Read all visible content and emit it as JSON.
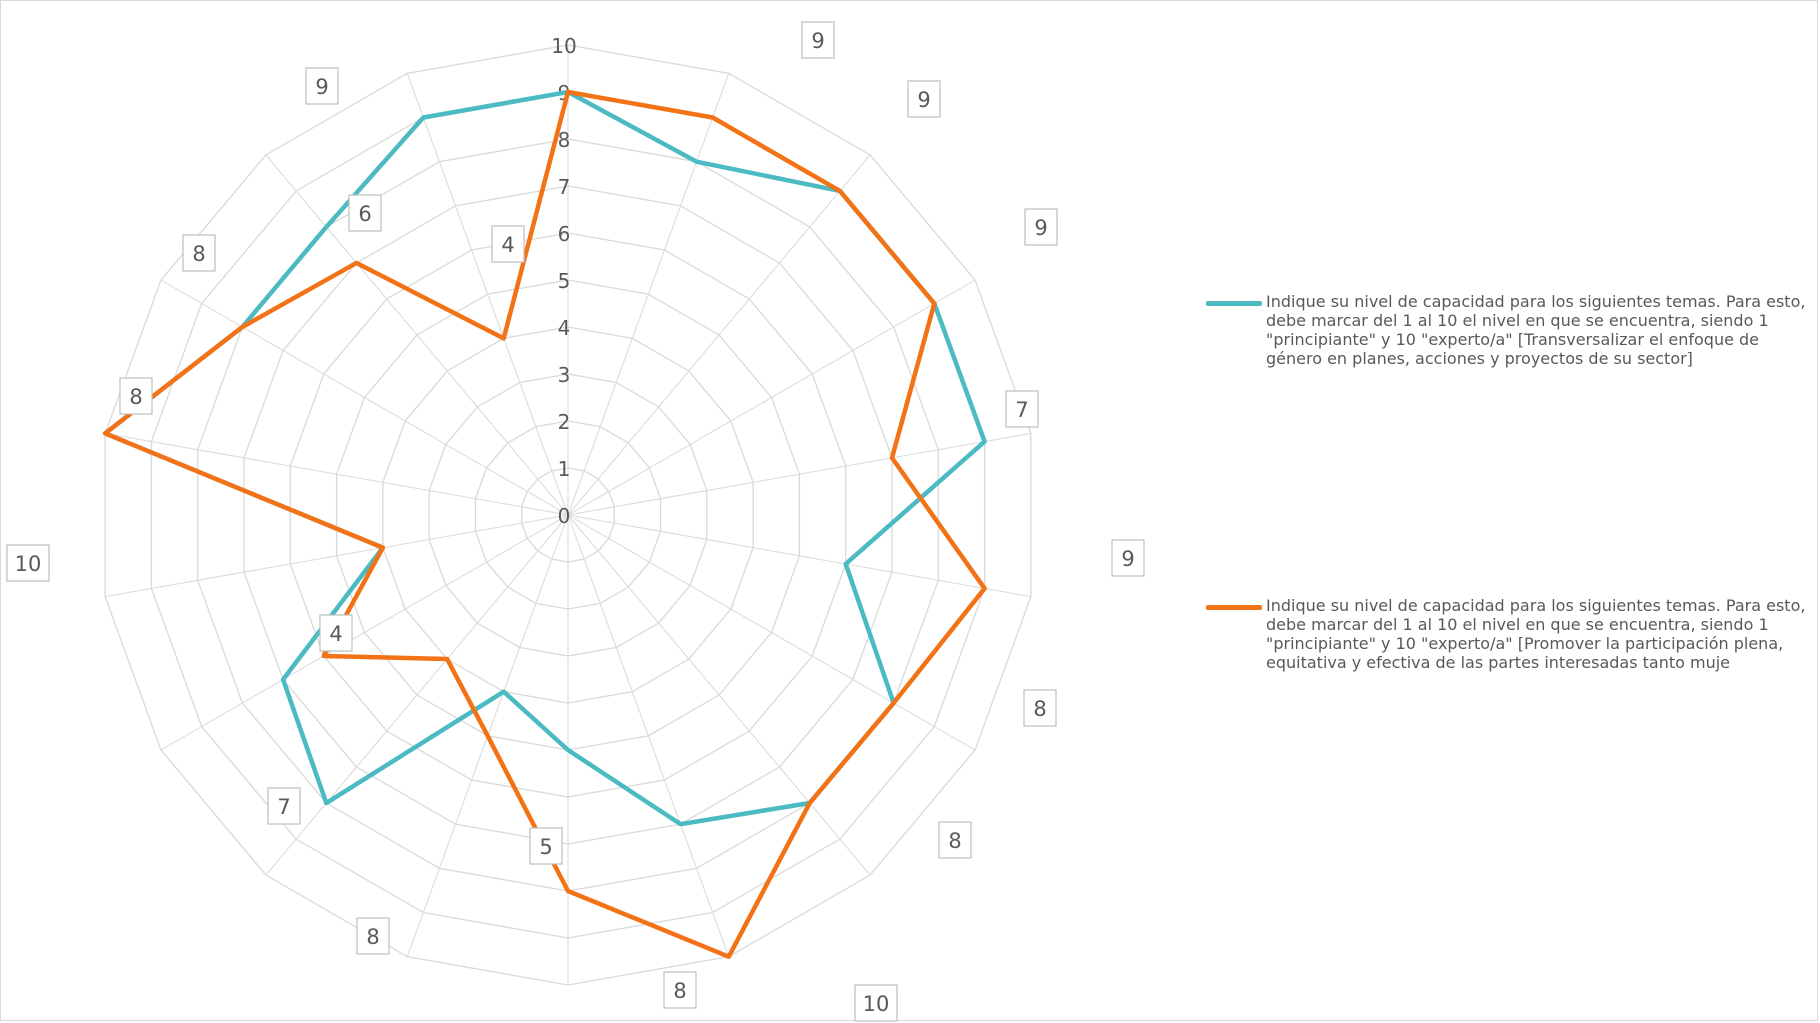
{
  "chart_data": {
    "type": "radar",
    "rings": [
      "0",
      "1",
      "2",
      "3",
      "4",
      "5",
      "6",
      "7",
      "8",
      "9",
      "10"
    ],
    "axis_count": 18,
    "range": [
      0,
      10
    ],
    "series": [
      {
        "name": "Indique su nivel de capacidad para los siguientes temas. Para esto, debe marcar del 1 al 10 el nivel en que se encuentra, siendo 1 \"principiante\" y 10 \"experto/a\" [Transversalizar el enfoque de género en planes, acciones y proyectos de su sector]",
        "color": "#4bbac3",
        "values": [
          9,
          8,
          9,
          9,
          9,
          6,
          8,
          8,
          7,
          5,
          4,
          8,
          7,
          4,
          10,
          8,
          8,
          9
        ]
      },
      {
        "name": "Indique su nivel de capacidad para los siguientes temas. Para esto, debe marcar del 1 al 10 el nivel en que se encuentra, siendo 1 \"principiante\" y 10 \"experto/a\" [Promover la participación plena, equitativa y efectiva de las partes interesadas tanto muje",
        "color": "#f47216",
        "values": [
          9,
          9,
          9,
          9,
          7,
          9,
          8,
          8,
          10,
          8,
          5,
          4,
          6,
          4,
          10,
          8,
          7,
          4
        ]
      }
    ],
    "data_labels": [
      "",
      "9",
      "9",
      "9",
      "7",
      "9",
      "8",
      "8",
      "10",
      "8",
      "5",
      "7",
      "8",
      "4",
      "10",
      "8",
      "8",
      "6",
      "4",
      "9"
    ],
    "legend": "right",
    "grid": true
  }
}
